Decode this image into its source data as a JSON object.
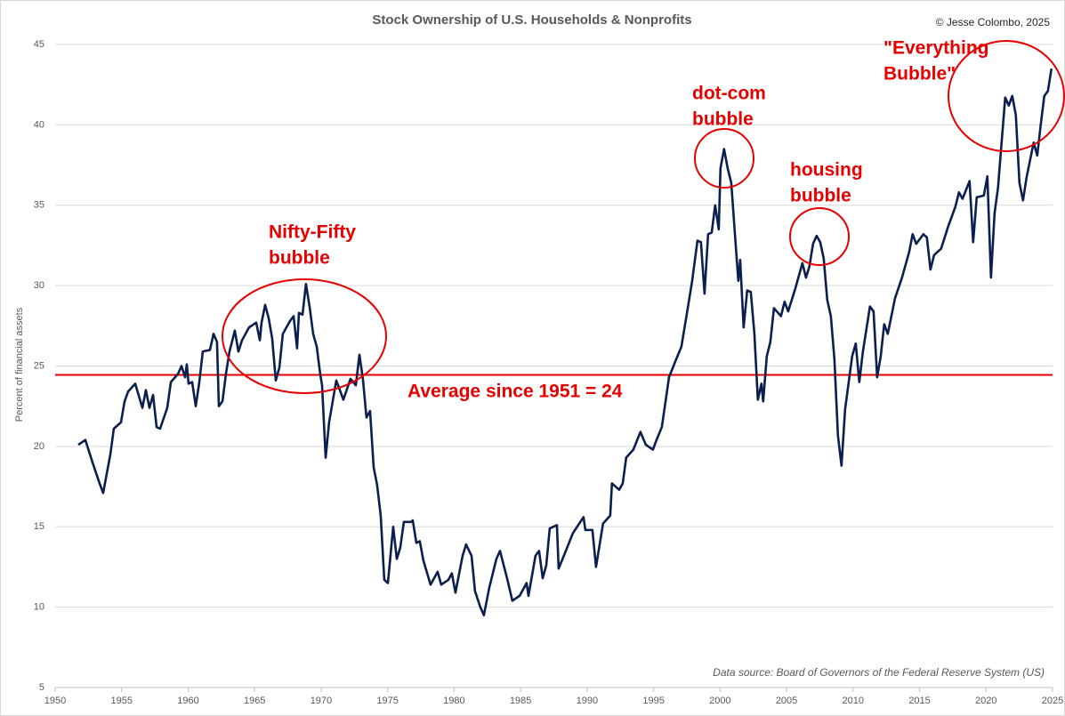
{
  "chart_data": {
    "type": "line",
    "title": "Stock Ownership of U.S. Households & Nonprofits",
    "copyright": "© Jesse Colombo, 2025",
    "source": "Data source: Board of Governors of the Federal Reserve System (US)",
    "y_label": "Percent of financial assets",
    "color": "#0b1f4f",
    "xlim": [
      1950,
      2025
    ],
    "xticks": [
      1950,
      1955,
      1960,
      1965,
      1970,
      1975,
      1980,
      1985,
      1990,
      1995,
      2000,
      2005,
      2010,
      2015,
      2020,
      2025
    ],
    "ylim": [
      5,
      45
    ],
    "yticks": [
      5,
      10,
      15,
      20,
      25,
      30,
      35,
      40,
      45
    ],
    "grid": true,
    "reference_line": {
      "value": 24.45,
      "color": "#e60000",
      "label": "Average since 1951 = 24"
    },
    "annotations": [
      [
        "Nifty-Fifty",
        "bubble"
      ],
      [
        "dot-com",
        "bubble"
      ],
      [
        "housing",
        "bubble"
      ],
      [
        "\"Everything",
        "Bubble\""
      ]
    ],
    "x": [
      1951.74,
      1952.27,
      1952.81,
      1953.34,
      1953.61,
      1954.15,
      1954.41,
      1954.95,
      1955.22,
      1955.48,
      1956.02,
      1956.56,
      1956.82,
      1957.09,
      1957.36,
      1957.63,
      1957.89,
      1958.43,
      1958.7,
      1959.23,
      1959.5,
      1959.77,
      1959.9,
      1960.03,
      1960.3,
      1960.57,
      1960.84,
      1961.1,
      1961.64,
      1961.91,
      1962.17,
      1962.31,
      1962.58,
      1962.84,
      1963.11,
      1963.51,
      1963.78,
      1964.05,
      1964.58,
      1965.12,
      1965.39,
      1965.52,
      1965.79,
      1966.05,
      1966.32,
      1966.59,
      1966.86,
      1967.12,
      1967.66,
      1967.93,
      1968.19,
      1968.33,
      1968.6,
      1968.86,
      1969.13,
      1969.4,
      1969.67,
      1969.93,
      1970.07,
      1970.34,
      1970.6,
      1971.14,
      1971.41,
      1971.67,
      1972.21,
      1972.61,
      1972.88,
      1973.14,
      1973.41,
      1973.68,
      1973.95,
      1974.21,
      1974.48,
      1974.75,
      1975.02,
      1975.42,
      1975.69,
      1975.95,
      1976.22,
      1976.76,
      1976.89,
      1977.16,
      1977.42,
      1977.69,
      1978.23,
      1978.76,
      1979.03,
      1979.57,
      1979.83,
      1980.1,
      1980.64,
      1980.9,
      1981.31,
      1981.57,
      1981.97,
      1982.24,
      1982.64,
      1983.18,
      1983.45,
      1983.98,
      1984.38,
      1984.92,
      1985.45,
      1985.59,
      1986.12,
      1986.39,
      1986.66,
      1986.93,
      1987.19,
      1987.73,
      1987.86,
      1988.4,
      1988.93,
      1989.73,
      1989.87,
      1990.4,
      1990.67,
      1991.2,
      1991.74,
      1991.87,
      1992.41,
      1992.68,
      1992.94,
      1993.48,
      1994.01,
      1994.42,
      1994.95,
      1995.22,
      1995.62,
      1996.16,
      1996.69,
      1997.09,
      1997.63,
      1997.9,
      1998.3,
      1998.56,
      1998.83,
      1999.1,
      1999.37,
      1999.63,
      1999.9,
      2000.03,
      2000.3,
      2000.57,
      2000.84,
      2001.1,
      2001.37,
      2001.51,
      2001.77,
      2002.04,
      2002.31,
      2002.58,
      2002.84,
      2003.11,
      2003.24,
      2003.51,
      2003.78,
      2004.05,
      2004.58,
      2004.85,
      2005.12,
      2005.65,
      2006.19,
      2006.46,
      2006.72,
      2006.99,
      2007.26,
      2007.53,
      2007.79,
      2008.06,
      2008.33,
      2008.6,
      2008.86,
      2009.13,
      2009.4,
      2009.93,
      2010.2,
      2010.47,
      2010.74,
      2011.27,
      2011.54,
      2011.81,
      2012.08,
      2012.34,
      2012.61,
      2013.15,
      2013.68,
      2014.22,
      2014.48,
      2014.75,
      2015.29,
      2015.55,
      2015.82,
      2016.09,
      2016.62,
      2017.16,
      2017.69,
      2017.96,
      2018.23,
      2018.76,
      2019.03,
      2019.3,
      2019.83,
      2020.1,
      2020.37,
      2020.64,
      2020.9,
      2021.17,
      2021.44,
      2021.71,
      2021.97,
      2022.24,
      2022.51,
      2022.78,
      2023.04,
      2023.58,
      2023.85,
      2024.11,
      2024.38,
      2024.65,
      2024.92
    ],
    "values": [
      20.1,
      20.4,
      19.0,
      17.7,
      17.1,
      19.5,
      21.1,
      21.5,
      22.8,
      23.4,
      23.9,
      22.4,
      23.5,
      22.4,
      23.2,
      21.2,
      21.1,
      22.4,
      24.0,
      24.5,
      25.0,
      24.3,
      25.1,
      23.9,
      24.0,
      22.5,
      24.0,
      25.9,
      26.0,
      27.0,
      26.5,
      22.5,
      22.8,
      24.5,
      25.9,
      27.2,
      25.9,
      26.6,
      27.4,
      27.7,
      26.6,
      27.7,
      28.8,
      28.0,
      26.7,
      24.1,
      24.9,
      27.0,
      27.8,
      28.1,
      26.1,
      28.3,
      28.2,
      30.1,
      28.7,
      27.0,
      26.2,
      24.5,
      23.8,
      19.3,
      21.5,
      24.1,
      23.5,
      22.9,
      24.2,
      23.8,
      25.7,
      24.2,
      21.8,
      22.2,
      18.7,
      17.6,
      15.7,
      11.7,
      11.5,
      15.0,
      13.0,
      13.7,
      15.3,
      15.3,
      15.4,
      14.0,
      14.1,
      12.9,
      11.4,
      12.2,
      11.4,
      11.7,
      12.1,
      10.9,
      13.2,
      13.9,
      13.2,
      11.0,
      10.0,
      9.5,
      11.2,
      13.0,
      13.5,
      11.8,
      10.4,
      10.7,
      11.5,
      10.7,
      13.2,
      13.5,
      11.8,
      12.6,
      14.9,
      15.1,
      12.4,
      13.5,
      14.6,
      15.6,
      14.8,
      14.8,
      12.5,
      15.2,
      15.7,
      17.7,
      17.3,
      17.7,
      19.3,
      19.8,
      20.9,
      20.1,
      19.8,
      20.4,
      21.2,
      24.3,
      25.4,
      26.2,
      28.9,
      30.3,
      32.8,
      32.7,
      29.5,
      33.2,
      33.3,
      35.0,
      33.5,
      37.3,
      38.5,
      37.3,
      36.4,
      33.4,
      30.3,
      31.6,
      27.4,
      29.7,
      29.6,
      27.0,
      22.9,
      23.9,
      22.8,
      25.6,
      26.5,
      28.6,
      28.1,
      29.0,
      28.4,
      29.8,
      31.4,
      30.5,
      31.2,
      32.6,
      33.1,
      32.7,
      31.7,
      29.1,
      28.1,
      25.4,
      20.7,
      18.8,
      22.3,
      25.6,
      26.4,
      24.0,
      25.9,
      28.7,
      28.4,
      24.3,
      25.6,
      27.6,
      27.0,
      29.2,
      30.5,
      32.1,
      33.2,
      32.6,
      33.2,
      33.0,
      31.0,
      31.9,
      32.3,
      33.7,
      34.9,
      35.8,
      35.4,
      36.5,
      32.7,
      35.5,
      35.6,
      36.8,
      30.5,
      34.5,
      36.1,
      38.9,
      41.7,
      41.2,
      41.8,
      40.6,
      36.4,
      35.3,
      36.7,
      38.9,
      38.1,
      40.0,
      41.8,
      42.1,
      43.5
    ]
  }
}
